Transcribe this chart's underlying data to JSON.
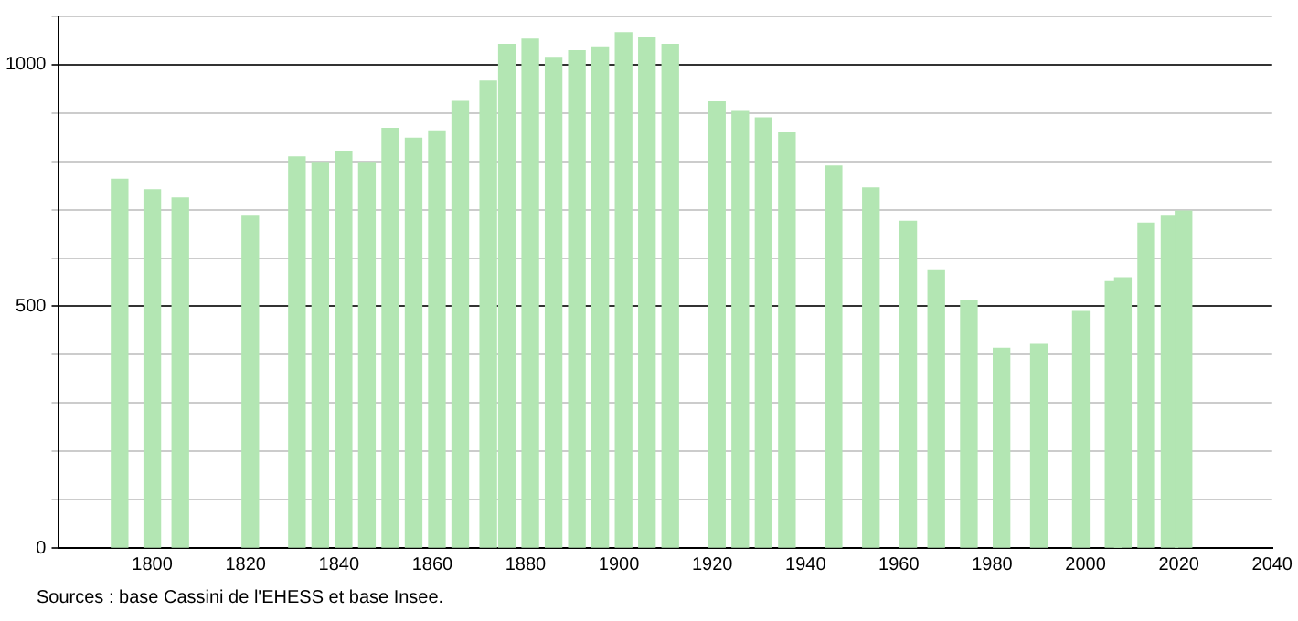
{
  "chart_data": {
    "type": "bar",
    "color": "#b3e6b3",
    "x": [
      1793,
      1800,
      1806,
      1821,
      1831,
      1836,
      1841,
      1846,
      1851,
      1856,
      1861,
      1866,
      1872,
      1876,
      1881,
      1886,
      1891,
      1896,
      1901,
      1906,
      1911,
      1921,
      1926,
      1931,
      1936,
      1946,
      1954,
      1962,
      1968,
      1975,
      1982,
      1990,
      1999,
      2006,
      2008,
      2013,
      2018,
      2021
    ],
    "values": [
      763,
      741,
      724,
      688,
      809,
      798,
      821,
      798,
      868,
      848,
      863,
      924,
      966,
      1042,
      1053,
      1015,
      1029,
      1037,
      1066,
      1056,
      1042,
      923,
      905,
      890,
      859,
      790,
      745,
      676,
      574,
      512,
      413,
      421,
      489,
      551,
      559,
      672,
      688,
      697
    ],
    "xlim": [
      1780,
      2040
    ],
    "xticks": [
      1800,
      1820,
      1840,
      1860,
      1880,
      1900,
      1920,
      1940,
      1960,
      1980,
      2000,
      2020,
      2040
    ],
    "ylim": [
      0,
      1100
    ],
    "yticks": [
      0,
      {
        "value": 100,
        "label": null
      },
      {
        "value": 200,
        "label": null
      },
      {
        "value": 300,
        "label": null
      },
      {
        "value": 400,
        "label": null
      },
      500,
      {
        "value": 600,
        "label": null
      },
      {
        "value": 700,
        "label": null
      },
      {
        "value": 800,
        "label": null
      },
      {
        "value": 900,
        "label": null
      },
      1000,
      {
        "value": 1100,
        "label": null
      }
    ],
    "grid": "y",
    "annotations": [
      "Sources : base Cassini de l'EHESS et base Insee."
    ]
  }
}
